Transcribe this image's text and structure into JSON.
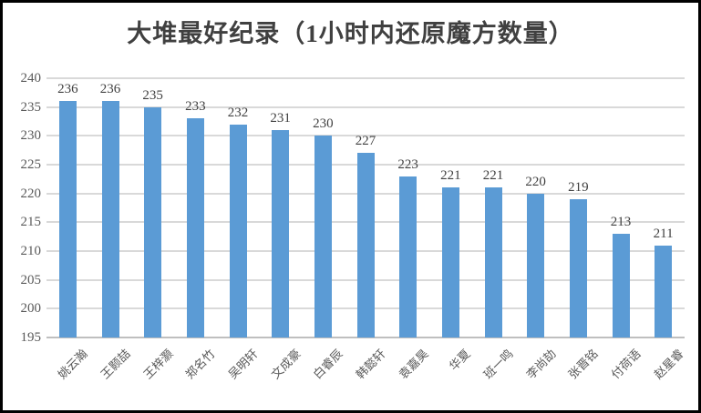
{
  "frame": {
    "background": "#ffffff",
    "border_color": "#000000"
  },
  "chart_data": {
    "type": "bar",
    "title": "大堆最好纪录（1小时内还原魔方数量）",
    "categories": [
      "姚云瀚",
      "王颢喆",
      "王梓灏",
      "郑名竹",
      "吴明轩",
      "文成豪",
      "白睿辰",
      "韩懿轩",
      "袁嘉昊",
      "华夏",
      "班一鸣",
      "李尚劼",
      "张晋铭",
      "付荷语",
      "赵星睿"
    ],
    "values": [
      236,
      236,
      235,
      233,
      232,
      231,
      230,
      227,
      223,
      221,
      221,
      220,
      219,
      213,
      211
    ],
    "xlabel": "",
    "ylabel": "",
    "ylim": [
      195,
      240
    ],
    "yticks": [
      240,
      235,
      230,
      225,
      220,
      215,
      210,
      205,
      200,
      195
    ],
    "grid": true,
    "legend": false,
    "data_labels": true,
    "bar_color": "#5B9BD5",
    "gridline_color": "#D9D9D9",
    "axis_label_color": "#595959",
    "data_label_color": "#404040",
    "title_color": "#404040"
  }
}
